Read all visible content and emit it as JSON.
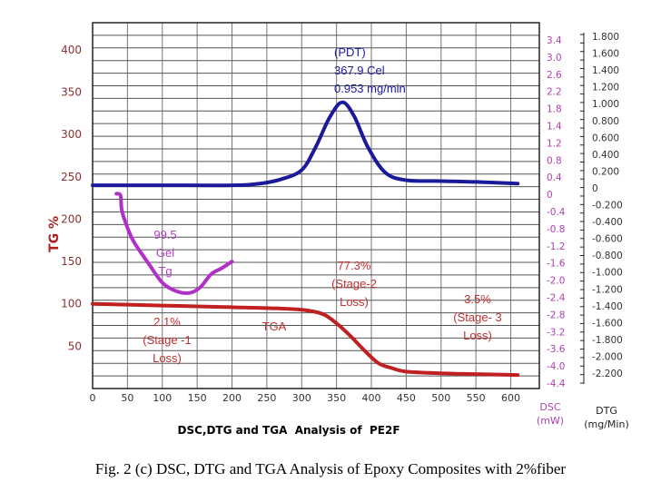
{
  "chart_data": {
    "type": "line",
    "title": "DSC,DTG and TGA  Analysis of  PE2F",
    "caption": "Fig. 2 (c) DSC, DTG and TGA Analysis of Epoxy Composites with 2%fiber",
    "xlabel": "",
    "xlim": [
      0,
      641
    ],
    "x_ticks": [
      "0",
      "50",
      "100",
      "150",
      "200",
      "250",
      "300",
      "350",
      "400",
      "450",
      "500",
      "550",
      "600"
    ],
    "grid": true,
    "axes": {
      "tg": {
        "label": "TG %",
        "ylim": [
          0,
          432
        ],
        "ticks": [
          "50",
          "100",
          "150",
          "200",
          "250",
          "300",
          "350",
          "400"
        ],
        "color": "#8a3030"
      },
      "dsc": {
        "label": "DSC",
        "unit": "(mW)",
        "ylim": [
          -4.65,
          3.8
        ],
        "ticks": [
          "3.4",
          "3.0",
          "2.6",
          "2.2",
          "1.8",
          "1.4",
          "1.2",
          "0.8",
          "0.4",
          "0",
          "-0.4",
          "-0.8",
          "-1.2",
          "-1.6",
          "-2.0",
          "-2.4",
          "-2.8",
          "-3.2",
          "-3.6",
          "-4.0",
          "-4.4"
        ],
        "color": "#b040b0"
      },
      "dtg": {
        "label": "DTG",
        "unit": "(mg/Min)",
        "ylim": [
          -2.35,
          1.9
        ],
        "ticks": [
          "1.800",
          "1.600",
          "1.400",
          "1.200",
          "1.000",
          "0.800",
          "0.600",
          "0.400",
          "0.200",
          "0",
          "-0.200",
          "-0.400",
          "-0.600",
          "-0.800",
          "-1.000",
          "-1.200",
          "-1.400",
          "-1.600",
          "-1.800",
          "-2.000",
          "-2.200"
        ],
        "color": "#333333"
      }
    },
    "series": [
      {
        "name": "DTG",
        "axis": "tg",
        "color": "#1a1a9a",
        "x": [
          0,
          100,
          200,
          240,
          270,
          300,
          320,
          340,
          358,
          375,
          395,
          420,
          450,
          500,
          550,
          610
        ],
        "y": [
          240,
          240,
          240,
          242,
          247,
          258,
          285,
          320,
          338,
          322,
          285,
          255,
          246,
          245,
          244,
          242
        ]
      },
      {
        "name": "DSC",
        "axis": "tg",
        "color": "#b030c8",
        "x": [
          34,
          40,
          42,
          50,
          60,
          80,
          100,
          120,
          140,
          155,
          170,
          185,
          200
        ],
        "y": [
          230,
          228,
          210,
          190,
          172,
          148,
          125,
          115,
          113,
          120,
          135,
          142,
          150
        ]
      },
      {
        "name": "TGA",
        "axis": "tg",
        "color": "#c02020",
        "x": [
          0,
          50,
          100,
          150,
          200,
          250,
          300,
          330,
          350,
          370,
          390,
          410,
          430,
          450,
          500,
          550,
          610
        ],
        "y": [
          100,
          99,
          98,
          97,
          96,
          95,
          93,
          88,
          77,
          62,
          45,
          30,
          24,
          20,
          18,
          17,
          16
        ]
      }
    ],
    "annotations": {
      "pdt": [
        "(PDT)",
        "367.9 Cel",
        "0.953 mg/min"
      ],
      "tg": [
        "99.5",
        "Gel",
        "Tg"
      ],
      "stage1": [
        "2.1%",
        "(Stage -1",
        "Loss)"
      ],
      "tga": [
        "TGA"
      ],
      "stage2": [
        "77.3%",
        "(Stage-2",
        "Loss)"
      ],
      "stage3": [
        "3.5%",
        "(Stage- 3",
        "Loss)"
      ]
    }
  }
}
